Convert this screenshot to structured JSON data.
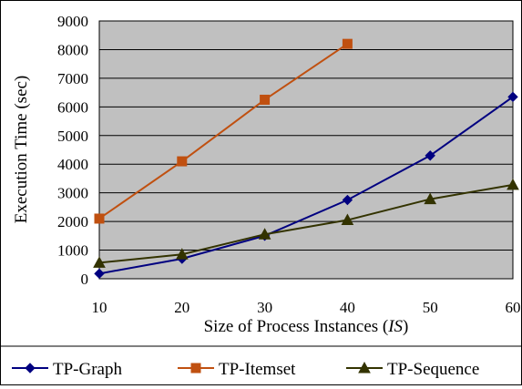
{
  "chart_data": {
    "type": "line",
    "title": "",
    "xlabel_main": "Size of Process Instances (",
    "xlabel_italic": "IS",
    "xlabel_end": ")",
    "ylabel": "Execution Time (sec)",
    "x": [
      10,
      20,
      30,
      40,
      50,
      60
    ],
    "xticks": [
      "10",
      "20",
      "30",
      "40",
      "50",
      "60"
    ],
    "xlim": [
      10,
      60
    ],
    "ylim": [
      0,
      9000
    ],
    "yticks": [
      "0",
      "1000",
      "2000",
      "3000",
      "4000",
      "5000",
      "6000",
      "7000",
      "8000",
      "9000"
    ],
    "grid": true,
    "legend_position": "bottom",
    "plot_background": "#c0c0c0",
    "series": [
      {
        "name": "TP-Graph",
        "color": "#000080",
        "marker": "diamond",
        "values": [
          180,
          700,
          1500,
          2750,
          4300,
          6350
        ]
      },
      {
        "name": "TP-Itemset",
        "color": "#c05010",
        "marker": "square",
        "values": [
          2100,
          4100,
          6250,
          8200,
          null,
          null
        ]
      },
      {
        "name": "TP-Sequence",
        "color": "#333300",
        "marker": "triangle",
        "values": [
          560,
          850,
          1550,
          2050,
          2780,
          3280
        ]
      }
    ]
  }
}
